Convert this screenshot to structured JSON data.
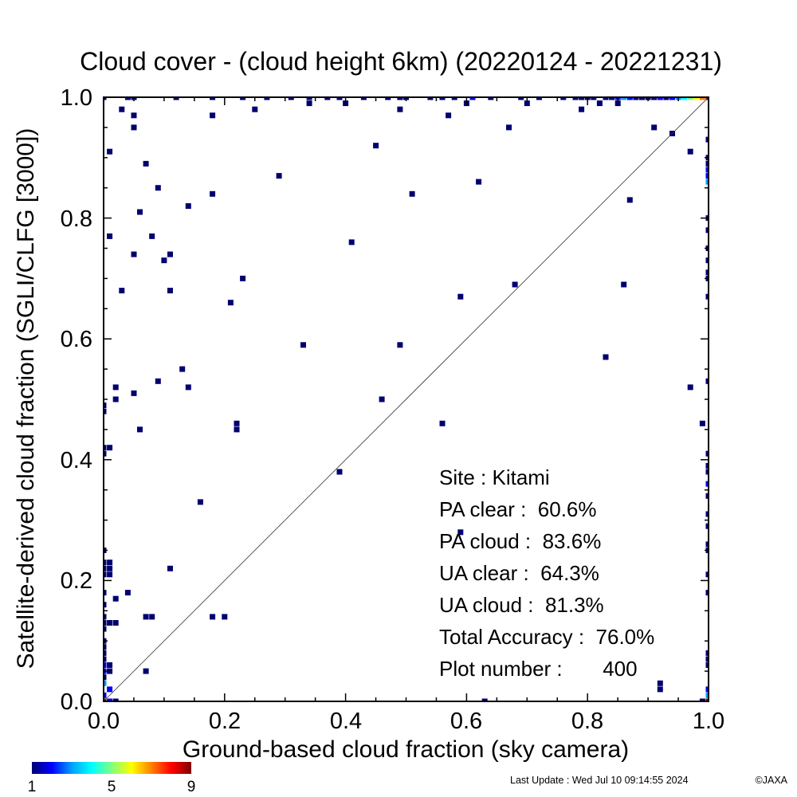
{
  "chart_data": {
    "type": "heatmap",
    "title": "Cloud cover - (cloud height 6km)  (20220124 - 20221231)",
    "xlabel": "Ground-based cloud fraction (sky camera)",
    "ylabel": "Satellite-derived cloud fraction (SGLI/CLFG [3000])",
    "xlim": [
      0.0,
      1.0
    ],
    "ylim": [
      0.0,
      1.0
    ],
    "x_ticks": [
      "0.0",
      "0.2",
      "0.4",
      "0.6",
      "0.8",
      "1.0"
    ],
    "y_ticks": [
      "0.0",
      "0.2",
      "0.4",
      "0.6",
      "0.8",
      "1.0"
    ],
    "diagonal_line": true,
    "grid": false,
    "colorbar": {
      "min": 1,
      "max": 9,
      "tick_labels": [
        "1",
        "5",
        "9"
      ],
      "colors": [
        "#000070",
        "#0000ff",
        "#00a0ff",
        "#00ffff",
        "#80ff80",
        "#ffff00",
        "#ff8000",
        "#ff0000",
        "#800000"
      ]
    },
    "cells": [
      {
        "x": 0.0,
        "y": 0.0,
        "count": 9
      },
      {
        "x": 1.0,
        "y": 1.0,
        "count": 9
      },
      {
        "x": 1.0,
        "y": 0.0,
        "count": 9
      },
      {
        "x": 0.0,
        "y": 1.0,
        "count": 1
      },
      {
        "x": 0.99,
        "y": 1.0,
        "count": 7
      },
      {
        "x": 0.98,
        "y": 1.0,
        "count": 6
      },
      {
        "x": 0.97,
        "y": 1.0,
        "count": 5
      },
      {
        "x": 0.96,
        "y": 1.0,
        "count": 4
      },
      {
        "x": 0.95,
        "y": 1.0,
        "count": 3
      },
      {
        "x": 0.94,
        "y": 1.0,
        "count": 2
      },
      {
        "x": 0.93,
        "y": 1.0,
        "count": 1
      },
      {
        "x": 0.92,
        "y": 1.0,
        "count": 2
      },
      {
        "x": 0.91,
        "y": 1.0,
        "count": 1
      },
      {
        "x": 0.9,
        "y": 1.0,
        "count": 1
      },
      {
        "x": 0.89,
        "y": 1.0,
        "count": 1
      },
      {
        "x": 0.88,
        "y": 1.0,
        "count": 1
      },
      {
        "x": 0.87,
        "y": 1.0,
        "count": 2
      },
      {
        "x": 0.86,
        "y": 1.0,
        "count": 3
      },
      {
        "x": 0.85,
        "y": 1.0,
        "count": 2
      },
      {
        "x": 0.84,
        "y": 1.0,
        "count": 1
      },
      {
        "x": 0.83,
        "y": 1.0,
        "count": 1
      },
      {
        "x": 0.81,
        "y": 1.0,
        "count": 1
      },
      {
        "x": 0.8,
        "y": 1.0,
        "count": 1
      },
      {
        "x": 0.79,
        "y": 1.0,
        "count": 1
      },
      {
        "x": 0.78,
        "y": 1.0,
        "count": 1
      },
      {
        "x": 0.76,
        "y": 1.0,
        "count": 1
      },
      {
        "x": 0.72,
        "y": 1.0,
        "count": 1
      },
      {
        "x": 0.69,
        "y": 1.0,
        "count": 1
      },
      {
        "x": 0.64,
        "y": 1.0,
        "count": 1
      },
      {
        "x": 0.61,
        "y": 1.0,
        "count": 2
      },
      {
        "x": 0.58,
        "y": 1.0,
        "count": 1
      },
      {
        "x": 0.56,
        "y": 1.0,
        "count": 1
      },
      {
        "x": 0.54,
        "y": 1.0,
        "count": 1
      },
      {
        "x": 0.5,
        "y": 1.0,
        "count": 1
      },
      {
        "x": 0.49,
        "y": 1.0,
        "count": 1
      },
      {
        "x": 0.47,
        "y": 1.0,
        "count": 1
      },
      {
        "x": 0.43,
        "y": 1.0,
        "count": 1
      },
      {
        "x": 0.39,
        "y": 1.0,
        "count": 1
      },
      {
        "x": 0.37,
        "y": 1.0,
        "count": 1
      },
      {
        "x": 0.34,
        "y": 1.0,
        "count": 1
      },
      {
        "x": 0.31,
        "y": 1.0,
        "count": 1
      },
      {
        "x": 0.27,
        "y": 1.0,
        "count": 1
      },
      {
        "x": 0.23,
        "y": 1.0,
        "count": 1
      },
      {
        "x": 0.18,
        "y": 1.0,
        "count": 1
      },
      {
        "x": 0.12,
        "y": 1.0,
        "count": 1
      },
      {
        "x": 0.05,
        "y": 1.0,
        "count": 1
      },
      {
        "x": 0.04,
        "y": 1.0,
        "count": 1
      },
      {
        "x": 0.7,
        "y": 0.99,
        "count": 1
      },
      {
        "x": 0.6,
        "y": 0.99,
        "count": 1
      },
      {
        "x": 0.4,
        "y": 0.99,
        "count": 1
      },
      {
        "x": 0.34,
        "y": 0.99,
        "count": 1
      },
      {
        "x": 0.82,
        "y": 0.99,
        "count": 1
      },
      {
        "x": 0.85,
        "y": 0.99,
        "count": 1
      },
      {
        "x": 0.03,
        "y": 0.98,
        "count": 1
      },
      {
        "x": 0.25,
        "y": 0.98,
        "count": 1
      },
      {
        "x": 0.49,
        "y": 0.98,
        "count": 1
      },
      {
        "x": 0.79,
        "y": 0.98,
        "count": 1
      },
      {
        "x": 0.05,
        "y": 0.97,
        "count": 1
      },
      {
        "x": 0.18,
        "y": 0.97,
        "count": 1
      },
      {
        "x": 0.57,
        "y": 0.97,
        "count": 1
      },
      {
        "x": 0.05,
        "y": 0.95,
        "count": 1
      },
      {
        "x": 0.67,
        "y": 0.95,
        "count": 1
      },
      {
        "x": 0.91,
        "y": 0.95,
        "count": 1
      },
      {
        "x": 0.94,
        "y": 0.94,
        "count": 1
      },
      {
        "x": 1.0,
        "y": 0.93,
        "count": 1
      },
      {
        "x": 0.45,
        "y": 0.92,
        "count": 1
      },
      {
        "x": 0.01,
        "y": 0.91,
        "count": 1
      },
      {
        "x": 0.97,
        "y": 0.91,
        "count": 1
      },
      {
        "x": 1.0,
        "y": 0.9,
        "count": 1
      },
      {
        "x": 0.07,
        "y": 0.89,
        "count": 1
      },
      {
        "x": 1.0,
        "y": 0.89,
        "count": 1
      },
      {
        "x": 1.0,
        "y": 0.88,
        "count": 2
      },
      {
        "x": 0.29,
        "y": 0.87,
        "count": 1
      },
      {
        "x": 1.0,
        "y": 0.87,
        "count": 2
      },
      {
        "x": 1.0,
        "y": 0.86,
        "count": 3
      },
      {
        "x": 0.62,
        "y": 0.86,
        "count": 1
      },
      {
        "x": 0.09,
        "y": 0.85,
        "count": 1
      },
      {
        "x": 0.18,
        "y": 0.84,
        "count": 1
      },
      {
        "x": 0.51,
        "y": 0.84,
        "count": 1
      },
      {
        "x": 0.87,
        "y": 0.83,
        "count": 1
      },
      {
        "x": 0.14,
        "y": 0.82,
        "count": 1
      },
      {
        "x": 0.06,
        "y": 0.81,
        "count": 1
      },
      {
        "x": 1.0,
        "y": 0.8,
        "count": 1
      },
      {
        "x": 1.0,
        "y": 0.78,
        "count": 1
      },
      {
        "x": 0.01,
        "y": 0.77,
        "count": 1
      },
      {
        "x": 0.08,
        "y": 0.77,
        "count": 1
      },
      {
        "x": 0.41,
        "y": 0.76,
        "count": 1
      },
      {
        "x": 1.0,
        "y": 0.75,
        "count": 1
      },
      {
        "x": 0.05,
        "y": 0.74,
        "count": 1
      },
      {
        "x": 0.11,
        "y": 0.74,
        "count": 1
      },
      {
        "x": 0.1,
        "y": 0.73,
        "count": 1
      },
      {
        "x": 1.0,
        "y": 0.73,
        "count": 1
      },
      {
        "x": 1.0,
        "y": 0.71,
        "count": 1
      },
      {
        "x": 0.23,
        "y": 0.7,
        "count": 1
      },
      {
        "x": 1.0,
        "y": 0.7,
        "count": 1
      },
      {
        "x": 0.68,
        "y": 0.69,
        "count": 1
      },
      {
        "x": 0.86,
        "y": 0.69,
        "count": 1
      },
      {
        "x": 0.03,
        "y": 0.68,
        "count": 1
      },
      {
        "x": 0.11,
        "y": 0.68,
        "count": 1
      },
      {
        "x": 0.59,
        "y": 0.67,
        "count": 1
      },
      {
        "x": 1.0,
        "y": 0.67,
        "count": 1
      },
      {
        "x": 0.21,
        "y": 0.66,
        "count": 1
      },
      {
        "x": 0.33,
        "y": 0.59,
        "count": 1
      },
      {
        "x": 0.49,
        "y": 0.59,
        "count": 1
      },
      {
        "x": 0.83,
        "y": 0.57,
        "count": 1
      },
      {
        "x": 0.13,
        "y": 0.55,
        "count": 1
      },
      {
        "x": 0.09,
        "y": 0.53,
        "count": 1
      },
      {
        "x": 1.0,
        "y": 0.53,
        "count": 1
      },
      {
        "x": 0.02,
        "y": 0.52,
        "count": 1
      },
      {
        "x": 0.14,
        "y": 0.52,
        "count": 1
      },
      {
        "x": 0.97,
        "y": 0.52,
        "count": 1
      },
      {
        "x": 0.05,
        "y": 0.51,
        "count": 1
      },
      {
        "x": 0.02,
        "y": 0.5,
        "count": 1
      },
      {
        "x": 0.46,
        "y": 0.5,
        "count": 1
      },
      {
        "x": 0.0,
        "y": 0.49,
        "count": 1
      },
      {
        "x": 0.0,
        "y": 0.48,
        "count": 1
      },
      {
        "x": 0.22,
        "y": 0.46,
        "count": 1
      },
      {
        "x": 0.56,
        "y": 0.46,
        "count": 1
      },
      {
        "x": 0.99,
        "y": 0.46,
        "count": 1
      },
      {
        "x": 0.06,
        "y": 0.45,
        "count": 1
      },
      {
        "x": 0.22,
        "y": 0.45,
        "count": 1
      },
      {
        "x": 0.0,
        "y": 0.42,
        "count": 1
      },
      {
        "x": 0.01,
        "y": 0.42,
        "count": 1
      },
      {
        "x": 0.0,
        "y": 0.41,
        "count": 1
      },
      {
        "x": 1.0,
        "y": 0.41,
        "count": 1
      },
      {
        "x": 1.0,
        "y": 0.39,
        "count": 1
      },
      {
        "x": 1.0,
        "y": 0.38,
        "count": 1
      },
      {
        "x": 0.39,
        "y": 0.38,
        "count": 1
      },
      {
        "x": 1.0,
        "y": 0.36,
        "count": 2
      },
      {
        "x": 1.0,
        "y": 0.34,
        "count": 1
      },
      {
        "x": 0.16,
        "y": 0.33,
        "count": 1
      },
      {
        "x": 1.0,
        "y": 0.31,
        "count": 1
      },
      {
        "x": 1.0,
        "y": 0.29,
        "count": 1
      },
      {
        "x": 0.59,
        "y": 0.28,
        "count": 1
      },
      {
        "x": 1.0,
        "y": 0.26,
        "count": 1
      },
      {
        "x": 0.0,
        "y": 0.25,
        "count": 1
      },
      {
        "x": 1.0,
        "y": 0.25,
        "count": 1
      },
      {
        "x": 0.0,
        "y": 0.23,
        "count": 1
      },
      {
        "x": 0.01,
        "y": 0.23,
        "count": 1
      },
      {
        "x": 0.11,
        "y": 0.22,
        "count": 1
      },
      {
        "x": 0.0,
        "y": 0.22,
        "count": 1
      },
      {
        "x": 0.01,
        "y": 0.22,
        "count": 1
      },
      {
        "x": 0.0,
        "y": 0.21,
        "count": 1
      },
      {
        "x": 0.01,
        "y": 0.21,
        "count": 1
      },
      {
        "x": 1.0,
        "y": 0.21,
        "count": 1
      },
      {
        "x": 0.0,
        "y": 0.18,
        "count": 1
      },
      {
        "x": 0.04,
        "y": 0.18,
        "count": 1
      },
      {
        "x": 1.0,
        "y": 0.18,
        "count": 1
      },
      {
        "x": 0.02,
        "y": 0.17,
        "count": 1
      },
      {
        "x": 0.0,
        "y": 0.16,
        "count": 1
      },
      {
        "x": 0.0,
        "y": 0.14,
        "count": 1
      },
      {
        "x": 0.07,
        "y": 0.14,
        "count": 1
      },
      {
        "x": 0.08,
        "y": 0.14,
        "count": 1
      },
      {
        "x": 0.18,
        "y": 0.14,
        "count": 1
      },
      {
        "x": 0.2,
        "y": 0.14,
        "count": 1
      },
      {
        "x": 0.0,
        "y": 0.13,
        "count": 1
      },
      {
        "x": 0.01,
        "y": 0.13,
        "count": 1
      },
      {
        "x": 0.02,
        "y": 0.13,
        "count": 1
      },
      {
        "x": 0.0,
        "y": 0.12,
        "count": 1
      },
      {
        "x": 0.0,
        "y": 0.1,
        "count": 1
      },
      {
        "x": 0.0,
        "y": 0.09,
        "count": 1
      },
      {
        "x": 0.0,
        "y": 0.08,
        "count": 1
      },
      {
        "x": 1.0,
        "y": 0.08,
        "count": 1
      },
      {
        "x": 0.0,
        "y": 0.07,
        "count": 1
      },
      {
        "x": 1.0,
        "y": 0.07,
        "count": 1
      },
      {
        "x": 0.0,
        "y": 0.06,
        "count": 2
      },
      {
        "x": 0.01,
        "y": 0.06,
        "count": 1
      },
      {
        "x": 1.0,
        "y": 0.06,
        "count": 1
      },
      {
        "x": 0.0,
        "y": 0.05,
        "count": 2
      },
      {
        "x": 0.07,
        "y": 0.05,
        "count": 1
      },
      {
        "x": 0.01,
        "y": 0.05,
        "count": 1
      },
      {
        "x": 0.0,
        "y": 0.04,
        "count": 1
      },
      {
        "x": 0.0,
        "y": 0.03,
        "count": 3
      },
      {
        "x": 0.92,
        "y": 0.03,
        "count": 1
      },
      {
        "x": 0.01,
        "y": 0.02,
        "count": 2
      },
      {
        "x": 0.92,
        "y": 0.02,
        "count": 1
      },
      {
        "x": 1.0,
        "y": 0.02,
        "count": 2
      },
      {
        "x": 0.0,
        "y": 0.01,
        "count": 2
      },
      {
        "x": 1.0,
        "y": 0.01,
        "count": 3
      },
      {
        "x": 0.01,
        "y": 0.0,
        "count": 2
      },
      {
        "x": 0.02,
        "y": 0.0,
        "count": 1
      },
      {
        "x": 0.63,
        "y": 0.0,
        "count": 1
      },
      {
        "x": 0.99,
        "y": 0.0,
        "count": 1
      }
    ],
    "annotations": [
      "Site : Kitami",
      "PA clear :  60.6%",
      "PA cloud :  83.6%",
      "UA clear :  64.3%",
      "UA cloud :  81.3%",
      "Total Accuracy :  76.0%",
      "Plot number :       400"
    ]
  },
  "footer": {
    "last_update": "Last Update : Wed Jul 10 09:14:55 2024",
    "copyright": "©JAXA"
  }
}
